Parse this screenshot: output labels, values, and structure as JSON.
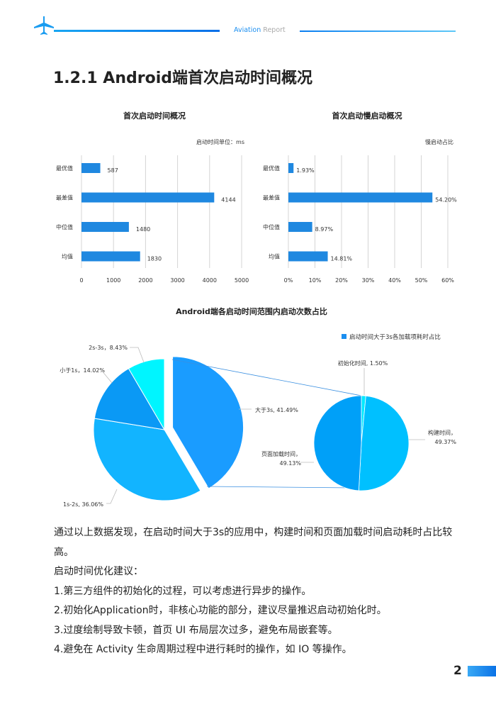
{
  "header": {
    "brand_a": "Aviation",
    "brand_b": "Report",
    "icon": "airplane-icon"
  },
  "title": "1.2.1 Android端首次启动时间概况",
  "chart_data": [
    {
      "type": "bar",
      "orientation": "horizontal",
      "title": "首次启动时间概况",
      "unit_note": "启动时间单位：ms",
      "categories": [
        "最优值",
        "最差值",
        "中位值",
        "均值"
      ],
      "values": [
        587,
        4144,
        1480,
        1830
      ],
      "value_labels": [
        "587",
        "4144",
        "1480",
        "1830"
      ],
      "xlim": [
        0,
        5000
      ],
      "xticks": [
        "0",
        "1000",
        "2000",
        "3000",
        "4000",
        "5000"
      ],
      "grid": true,
      "color": "#1f88e0"
    },
    {
      "type": "bar",
      "orientation": "horizontal",
      "title": "首次启动慢启动概况",
      "unit_note": "慢启动占比",
      "categories": [
        "最优值",
        "最差值",
        "中位值",
        "均值"
      ],
      "values": [
        1.93,
        54.2,
        8.97,
        14.81
      ],
      "value_labels": [
        "1.93%",
        "54.20%",
        "8.97%",
        "14.81%"
      ],
      "xlim": [
        0,
        60
      ],
      "xticks": [
        "0%",
        "10%",
        "20%",
        "30%",
        "40%",
        "50%",
        "60%"
      ],
      "grid": true,
      "color": "#1f88e0"
    },
    {
      "type": "pie",
      "subtype": "pie-of-pie",
      "title": "Android端各启动时间范围内启动次数占比",
      "legend": "启动时间大于3s各加载项耗时占比",
      "legend_position": "top-right",
      "main": [
        {
          "label": "大于3s, 41.49%",
          "value": 41.49,
          "color": "#1a9cff"
        },
        {
          "label": "1s-2s, 36.06%",
          "value": 36.06,
          "color": "#12b4ff"
        },
        {
          "label": "小于1s，14.02%",
          "value": 14.02,
          "color": "#0a99f5"
        },
        {
          "label": "2s-3s，8.43%",
          "value": 8.43,
          "color": "#00f5ff"
        }
      ],
      "secondary": [
        {
          "label": "初始化时间, 1.50%",
          "value": 1.5,
          "color": "#00eaff"
        },
        {
          "label": "构建时间，49.37%",
          "value": 49.37,
          "color": "#00c0ff"
        },
        {
          "label": "页面加载时间，49.13%",
          "value": 49.13,
          "color": "#00a0f8"
        }
      ]
    }
  ],
  "body": [
    "通过以上数据发现，在启动时间大于3s的应用中，构建时间和页面加载时间启动耗时占比较高。",
    "启动时间优化建议：",
    "1.第三方组件的初始化的过程，可以考虑进行异步的操作。",
    "2.初始化Application时，非核心功能的部分，建议尽量推迟启动初始化时。",
    "3.过度绘制导致卡顿，首页 UI 布局层次过多，避免布局嵌套等。",
    "4.避免在 Activity 生命周期过程中进行耗时的操作，如 IO 等操作。"
  ],
  "page_number": "2"
}
